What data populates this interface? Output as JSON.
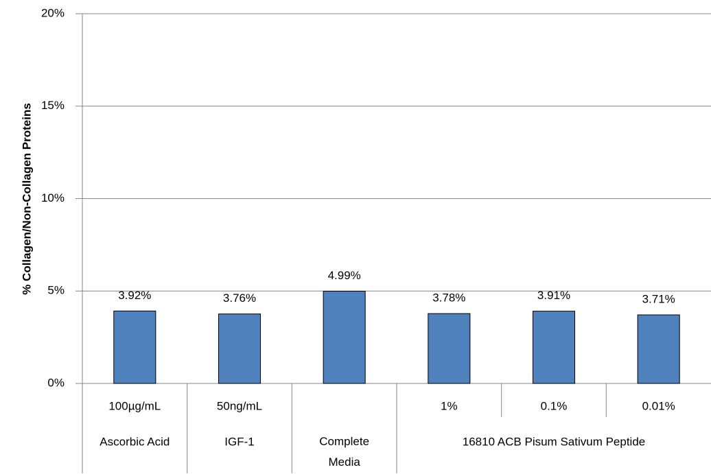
{
  "chart_data": {
    "type": "bar",
    "ylabel": "% Collagen/Non-Collagen Proteins",
    "categories": [
      "100µg/mL",
      "50ng/mL",
      null,
      "1%",
      "0.1%",
      "0.01%"
    ],
    "groups": [
      {
        "label": "Ascorbic Acid",
        "span": 1
      },
      {
        "label": "IGF-1",
        "span": 1
      },
      {
        "label": "Complete Media",
        "span": 1
      },
      {
        "label": "16810 ACB Pisum Sativum Peptide",
        "span": 3
      }
    ],
    "values": [
      3.92,
      3.76,
      4.99,
      3.78,
      3.91,
      3.71
    ],
    "value_labels": [
      "3.92%",
      "3.76%",
      "4.99%",
      "3.78%",
      "3.91%",
      "3.71%"
    ],
    "color": "#4f81bd",
    "ylim": [
      0,
      20
    ],
    "yticks": [
      {
        "value": 0,
        "label": "0%"
      },
      {
        "value": 5,
        "label": "5%"
      },
      {
        "value": 10,
        "label": "10%"
      },
      {
        "value": 15,
        "label": "15%"
      },
      {
        "value": 20,
        "label": "20%"
      }
    ],
    "grid": true
  }
}
